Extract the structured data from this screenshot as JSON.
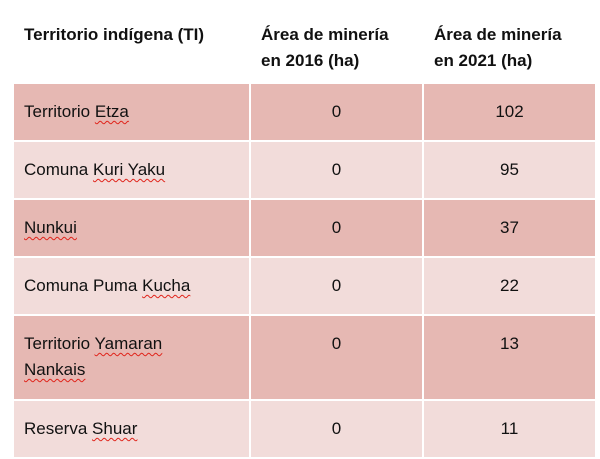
{
  "table": {
    "headers": [
      "Territorio indígena (TI)",
      "Área de minería en 2016 (ha)",
      "Área de minería en 2021 (ha)"
    ],
    "rows": [
      {
        "name_a": "Territorio ",
        "name_b": "Etza",
        "area_2016": "0",
        "area_2021": "102"
      },
      {
        "name_a": "Comuna ",
        "name_b": "Kuri Yaku",
        "area_2016": "0",
        "area_2021": "95"
      },
      {
        "name_a": "",
        "name_b": "Nunkui",
        "area_2016": "0",
        "area_2021": "37"
      },
      {
        "name_a": "Comuna Puma ",
        "name_b": "Kucha",
        "area_2016": "0",
        "area_2021": "22"
      },
      {
        "name_a": "Territorio ",
        "name_b": "Yamaran",
        "name_c": "Nankais",
        "area_2016": "0",
        "area_2021": "13"
      },
      {
        "name_a": "Reserva ",
        "name_b": "Shuar",
        "area_2016": "0",
        "area_2021": "11"
      }
    ]
  },
  "colors": {
    "row_dark": "#e6b8b3",
    "row_light": "#f2dcda",
    "spellcheck_underline": "#e0231a"
  }
}
